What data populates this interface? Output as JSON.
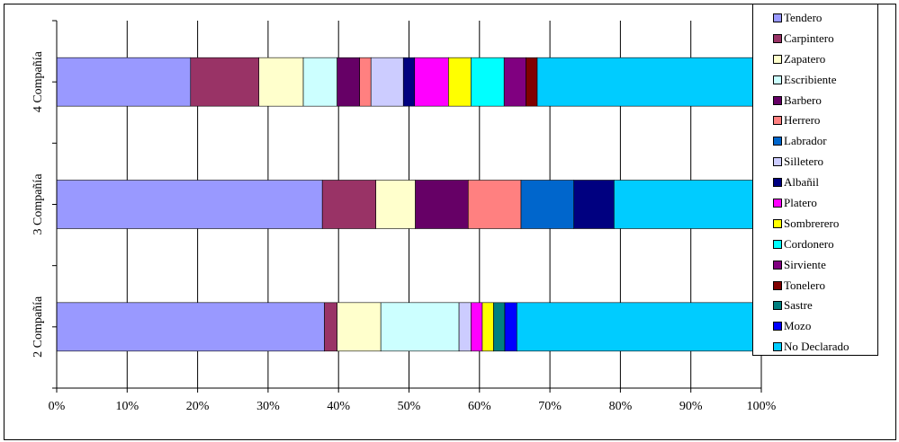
{
  "chart_data": {
    "type": "bar",
    "orientation": "horizontal",
    "stacked": "percent",
    "categories": [
      "4 Compañía",
      "3 Compañía",
      "2 Compañía"
    ],
    "xlim": [
      0,
      100
    ],
    "x_ticks": [
      "0%",
      "10%",
      "20%",
      "30%",
      "40%",
      "50%",
      "60%",
      "70%",
      "80%",
      "90%",
      "100%"
    ],
    "grid": "vertical",
    "legend_position": "right",
    "series": [
      {
        "name": "Tendero",
        "color": "#9999FF",
        "values": [
          19.0,
          37.7,
          38.0
        ]
      },
      {
        "name": "Carpintero",
        "color": "#993366",
        "values": [
          9.7,
          7.6,
          1.8
        ]
      },
      {
        "name": "Zapatero",
        "color": "#FFFFCC",
        "values": [
          6.3,
          5.6,
          6.2
        ]
      },
      {
        "name": "Escribiente",
        "color": "#CCFFFF",
        "values": [
          4.8,
          0,
          11.1
        ]
      },
      {
        "name": "Barbero",
        "color": "#660066",
        "values": [
          3.2,
          7.5,
          0
        ]
      },
      {
        "name": "Herrero",
        "color": "#FF8080",
        "values": [
          1.6,
          7.5,
          0
        ]
      },
      {
        "name": "Labrador",
        "color": "#0066CC",
        "values": [
          0,
          7.5,
          0
        ]
      },
      {
        "name": "Silletero",
        "color": "#CCCCFF",
        "values": [
          4.6,
          0,
          1.7
        ]
      },
      {
        "name": "Albañil",
        "color": "#000080",
        "values": [
          1.6,
          5.7,
          0
        ]
      },
      {
        "name": "Platero",
        "color": "#FF00FF",
        "values": [
          4.8,
          0,
          1.6
        ]
      },
      {
        "name": "Sombrerero",
        "color": "#FFFF00",
        "values": [
          3.2,
          0,
          1.6
        ]
      },
      {
        "name": "Cordonero",
        "color": "#00FFFF",
        "values": [
          4.7,
          0,
          0
        ]
      },
      {
        "name": "Sirviente",
        "color": "#800080",
        "values": [
          3.1,
          0,
          0
        ]
      },
      {
        "name": "Tonelero",
        "color": "#800000",
        "values": [
          1.6,
          0,
          0
        ]
      },
      {
        "name": "Sastre",
        "color": "#008080",
        "values": [
          0,
          0,
          1.6
        ]
      },
      {
        "name": "Mozo",
        "color": "#0000FF",
        "values": [
          0,
          0,
          1.7
        ]
      },
      {
        "name": "No Declarado",
        "color": "#00CCFF",
        "values": [
          31.8,
          20.9,
          34.7
        ]
      }
    ]
  }
}
